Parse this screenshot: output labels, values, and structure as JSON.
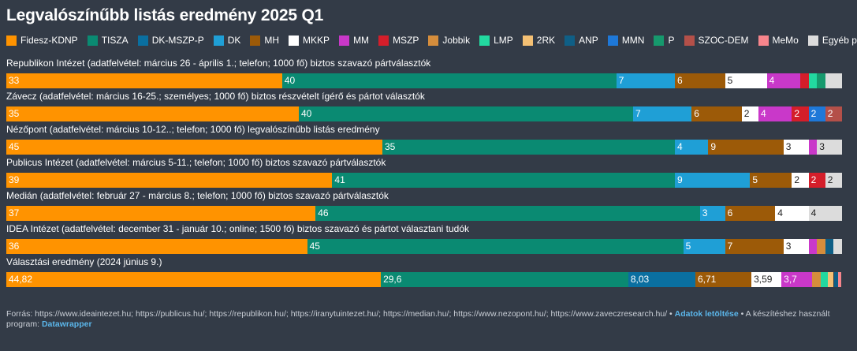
{
  "title": "Legvalószínűbb listás eredmény 2025 Q1",
  "parties": [
    {
      "name": "Fidesz-KDNP",
      "color": "#ff9300",
      "text": "#ffffff"
    },
    {
      "name": "TISZA",
      "color": "#0a8a72",
      "text": "#ffffff"
    },
    {
      "name": "DK-MSZP-P",
      "color": "#0a6fa0",
      "text": "#ffffff"
    },
    {
      "name": "DK",
      "color": "#1f9fd6",
      "text": "#ffffff"
    },
    {
      "name": "MH",
      "color": "#9c5a08",
      "text": "#ffffff"
    },
    {
      "name": "MKKP",
      "color": "#ffffff",
      "text": "#222222"
    },
    {
      "name": "MM",
      "color": "#c938c9",
      "text": "#ffffff"
    },
    {
      "name": "MSZP",
      "color": "#d41e2a",
      "text": "#ffffff"
    },
    {
      "name": "Jobbik",
      "color": "#d58d3c",
      "text": "#ffffff"
    },
    {
      "name": "LMP",
      "color": "#22d9a0",
      "text": "#222222"
    },
    {
      "name": "2RK",
      "color": "#f4c074",
      "text": "#222222"
    },
    {
      "name": "ANP",
      "color": "#0f5f86",
      "text": "#ffffff"
    },
    {
      "name": "MMN",
      "color": "#1e78d8",
      "text": "#ffffff"
    },
    {
      "name": "P",
      "color": "#16996d",
      "text": "#ffffff"
    },
    {
      "name": "SZOC-DEM",
      "color": "#b45049",
      "text": "#ffffff"
    },
    {
      "name": "MeMo",
      "color": "#f7858c",
      "text": "#222222"
    },
    {
      "name": "Egyéb párt",
      "color": "#dcdcdc",
      "text": "#222222"
    }
  ],
  "chart_data": {
    "type": "bar",
    "stacked": true,
    "orientation": "horizontal",
    "legend": "top",
    "xlim": [
      0,
      100
    ],
    "rows": [
      {
        "label": "Republikon Intézet (adatfelvétel: március 26 - április 1.; telefon; 1000 fő) biztos szavazó pártválasztók",
        "segments": [
          {
            "party": "Fidesz-KDNP",
            "value": 33,
            "label": "33"
          },
          {
            "party": "TISZA",
            "value": 40,
            "label": "40"
          },
          {
            "party": "DK",
            "value": 7,
            "label": "7"
          },
          {
            "party": "MH",
            "value": 6,
            "label": "6"
          },
          {
            "party": "MKKP",
            "value": 5,
            "label": "5"
          },
          {
            "party": "MM",
            "value": 4,
            "label": "4"
          },
          {
            "party": "MSZP",
            "value": 1,
            "label": ""
          },
          {
            "party": "LMP",
            "value": 1,
            "label": ""
          },
          {
            "party": "P",
            "value": 1,
            "label": ""
          },
          {
            "party": "Egyéb párt",
            "value": 2,
            "label": ""
          }
        ]
      },
      {
        "label": "Závecz (adatfelvétel: március 16-25.; személyes; 1000 fő) biztos részvételt ígérő és pártot választók",
        "segments": [
          {
            "party": "Fidesz-KDNP",
            "value": 35,
            "label": "35"
          },
          {
            "party": "TISZA",
            "value": 40,
            "label": "40"
          },
          {
            "party": "DK",
            "value": 7,
            "label": "7"
          },
          {
            "party": "MH",
            "value": 6,
            "label": "6"
          },
          {
            "party": "MKKP",
            "value": 2,
            "label": "2"
          },
          {
            "party": "MM",
            "value": 4,
            "label": "4"
          },
          {
            "party": "MSZP",
            "value": 2,
            "label": "2"
          },
          {
            "party": "MMN",
            "value": 2,
            "label": "2"
          },
          {
            "party": "SZOC-DEM",
            "value": 2,
            "label": "2"
          }
        ]
      },
      {
        "label": "Nézőpont (adatfelvétel: március 10-12..; telefon; 1000 fő) legvalószínűbb listás eredmény",
        "segments": [
          {
            "party": "Fidesz-KDNP",
            "value": 45,
            "label": "45"
          },
          {
            "party": "TISZA",
            "value": 35,
            "label": "35"
          },
          {
            "party": "DK",
            "value": 4,
            "label": "4"
          },
          {
            "party": "MH",
            "value": 9,
            "label": "9"
          },
          {
            "party": "MKKP",
            "value": 3,
            "label": "3"
          },
          {
            "party": "MM",
            "value": 1,
            "label": ""
          },
          {
            "party": "Egyéb párt",
            "value": 3,
            "label": "3"
          }
        ]
      },
      {
        "label": "Publicus Intézet (adatfelvétel: március 5-11.; telefon; 1000 fő) biztos szavazó pártválasztók",
        "segments": [
          {
            "party": "Fidesz-KDNP",
            "value": 39,
            "label": "39"
          },
          {
            "party": "TISZA",
            "value": 41,
            "label": "41"
          },
          {
            "party": "DK",
            "value": 9,
            "label": "9"
          },
          {
            "party": "MH",
            "value": 5,
            "label": "5"
          },
          {
            "party": "MKKP",
            "value": 2,
            "label": "2"
          },
          {
            "party": "MSZP",
            "value": 2,
            "label": "2"
          },
          {
            "party": "Egyéb párt",
            "value": 2,
            "label": "2"
          }
        ]
      },
      {
        "label": "Medián (adatfelvétel: február 27 - március 8.; telefon; 1000 fő) biztos szavazó pártválasztók",
        "segments": [
          {
            "party": "Fidesz-KDNP",
            "value": 37,
            "label": "37"
          },
          {
            "party": "TISZA",
            "value": 46,
            "label": "46"
          },
          {
            "party": "DK",
            "value": 3,
            "label": "3"
          },
          {
            "party": "MH",
            "value": 6,
            "label": "6"
          },
          {
            "party": "MKKP",
            "value": 4,
            "label": "4"
          },
          {
            "party": "Egyéb párt",
            "value": 4,
            "label": "4"
          }
        ]
      },
      {
        "label": "IDEA Intézet (adatfelvétel: december 31 - január 10.; online; 1500 fő) biztos szavazó és pártot választani tudók",
        "segments": [
          {
            "party": "Fidesz-KDNP",
            "value": 36,
            "label": "36"
          },
          {
            "party": "TISZA",
            "value": 45,
            "label": "45"
          },
          {
            "party": "DK",
            "value": 5,
            "label": "5"
          },
          {
            "party": "MH",
            "value": 7,
            "label": "7"
          },
          {
            "party": "MKKP",
            "value": 3,
            "label": "3"
          },
          {
            "party": "MM",
            "value": 1,
            "label": ""
          },
          {
            "party": "Jobbik",
            "value": 1,
            "label": ""
          },
          {
            "party": "ANP",
            "value": 1,
            "label": ""
          },
          {
            "party": "Egyéb párt",
            "value": 1,
            "label": ""
          }
        ]
      },
      {
        "label": "Választási eredmény (2024 június 9.)",
        "segments": [
          {
            "party": "Fidesz-KDNP",
            "value": 44.82,
            "label": "44,82"
          },
          {
            "party": "TISZA",
            "value": 29.6,
            "label": "29,6"
          },
          {
            "party": "DK-MSZP-P",
            "value": 8.03,
            "label": "8,03"
          },
          {
            "party": "MH",
            "value": 6.71,
            "label": "6,71"
          },
          {
            "party": "MKKP",
            "value": 3.59,
            "label": "3,59"
          },
          {
            "party": "MM",
            "value": 3.7,
            "label": "3,7"
          },
          {
            "party": "Jobbik",
            "value": 1,
            "label": ""
          },
          {
            "party": "LMP",
            "value": 0.86,
            "label": ""
          },
          {
            "party": "2RK",
            "value": 0.7,
            "label": ""
          },
          {
            "party": "ANP",
            "value": 0.5,
            "label": ""
          },
          {
            "party": "MeMo",
            "value": 0.4,
            "label": ""
          }
        ]
      }
    ]
  },
  "footer": {
    "sources": "Forrás: https://www.ideaintezet.hu; https://publicus.hu/; https://republikon.hu/; https://iranytuintezet.hu/; https://median.hu/; https://www.nezopont.hu/; https://www.zaveczresearch.hu/ •",
    "download_link": "Adatok letöltése",
    "tool_text": "• A készítéshez használt program:",
    "tool_link": "Datawrapper"
  }
}
